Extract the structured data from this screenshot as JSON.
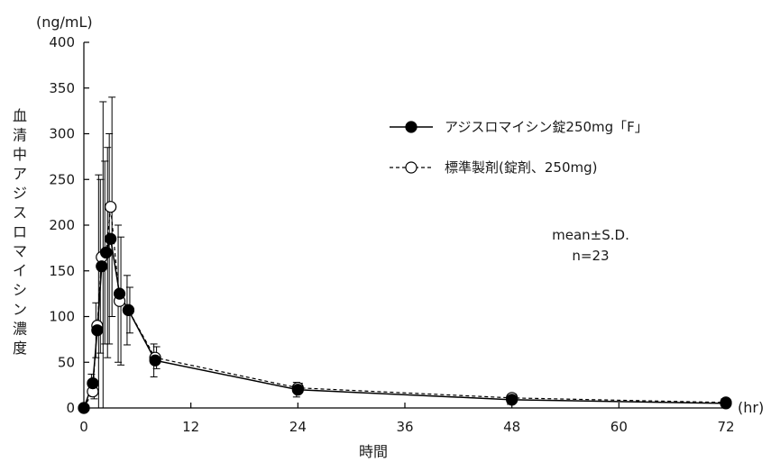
{
  "chart_data": {
    "type": "line",
    "xlabel": "時間",
    "ylabel": "血清中アジスロマイシン濃度",
    "x_unit": "(hr)",
    "y_unit": "(ng/mL)",
    "xlim": [
      0,
      72
    ],
    "ylim": [
      0,
      400
    ],
    "x_ticks": [
      "0",
      "12",
      "24",
      "36",
      "48",
      "60",
      "72"
    ],
    "y_ticks": [
      "0",
      "50",
      "100",
      "150",
      "200",
      "250",
      "300",
      "350",
      "400"
    ],
    "series": [
      {
        "name": "アジスロマイシン錠250mg「F」",
        "marker": "filled-circle",
        "line": "solid",
        "color": "#000000",
        "points": [
          {
            "x": 0,
            "y": 0,
            "sd": 0
          },
          {
            "x": 1,
            "y": 27,
            "sd": 10
          },
          {
            "x": 1.5,
            "y": 85,
            "sd": 30
          },
          {
            "x": 2,
            "y": 155,
            "sd": 95
          },
          {
            "x": 2.5,
            "y": 170,
            "sd": 100
          },
          {
            "x": 3,
            "y": 185,
            "sd": 115
          },
          {
            "x": 4,
            "y": 125,
            "sd": 75
          },
          {
            "x": 5,
            "y": 107,
            "sd": 38
          },
          {
            "x": 8,
            "y": 52,
            "sd": 18
          },
          {
            "x": 24,
            "y": 20,
            "sd": 8
          },
          {
            "x": 48,
            "y": 9,
            "sd": 5
          },
          {
            "x": 72,
            "y": 5,
            "sd": 5
          }
        ]
      },
      {
        "name": "標準製剤(錠剤、250mg)",
        "marker": "open-circle",
        "line": "dashed",
        "color": "#000000",
        "points": [
          {
            "x": 0,
            "y": 0,
            "sd": 0
          },
          {
            "x": 1,
            "y": 18,
            "sd": 8
          },
          {
            "x": 1.5,
            "y": 90,
            "sd": 165
          },
          {
            "x": 2,
            "y": 165,
            "sd": 170
          },
          {
            "x": 2.5,
            "y": 170,
            "sd": 115
          },
          {
            "x": 3,
            "y": 220,
            "sd": 120
          },
          {
            "x": 4,
            "y": 117,
            "sd": 70
          },
          {
            "x": 5,
            "y": 107,
            "sd": 25
          },
          {
            "x": 8,
            "y": 55,
            "sd": 12
          },
          {
            "x": 24,
            "y": 22,
            "sd": 5
          },
          {
            "x": 48,
            "y": 11,
            "sd": 4
          },
          {
            "x": 72,
            "y": 6,
            "sd": 3
          }
        ]
      }
    ],
    "legend_position": "top-right",
    "annotation": [
      "mean±S.D.",
      "n=23"
    ],
    "grid": false
  }
}
